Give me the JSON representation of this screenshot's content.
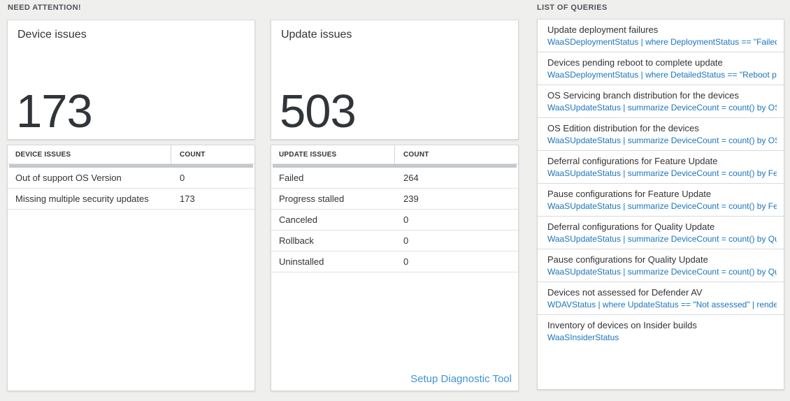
{
  "sections": {
    "need_attention_label": "NEED ATTENTION!",
    "list_of_queries_label": "LIST OF QUERIES"
  },
  "device_card": {
    "title": "Device issues",
    "count": "173"
  },
  "device_table": {
    "headers": {
      "name": "DEVICE ISSUES",
      "count": "COUNT"
    },
    "rows": [
      {
        "name": "Out of support OS Version",
        "count": "0"
      },
      {
        "name": "Missing multiple security updates",
        "count": "173"
      }
    ]
  },
  "update_card": {
    "title": "Update issues",
    "count": "503"
  },
  "update_table": {
    "headers": {
      "name": "UPDATE ISSUES",
      "count": "COUNT"
    },
    "rows": [
      {
        "name": "Failed",
        "count": "264"
      },
      {
        "name": "Progress stalled",
        "count": "239"
      },
      {
        "name": "Canceled",
        "count": "0"
      },
      {
        "name": "Rollback",
        "count": "0"
      },
      {
        "name": "Uninstalled",
        "count": "0"
      }
    ],
    "footer_link": "Setup Diagnostic Tool"
  },
  "queries": [
    {
      "title": "Update deployment failures",
      "query": "WaaSDeploymentStatus | where DeploymentStatus == \"Failed\" |..."
    },
    {
      "title": "Devices pending reboot to complete update",
      "query": "WaaSDeploymentStatus | where DetailedStatus == \"Reboot pend..."
    },
    {
      "title": "OS Servicing branch distribution for the devices",
      "query": "WaaSUpdateStatus | summarize DeviceCount = count() by OSSer..."
    },
    {
      "title": "OS Edition distribution for the devices",
      "query": "WaaSUpdateStatus | summarize DeviceCount = count() by OSEdit..."
    },
    {
      "title": "Deferral configurations for Feature Update",
      "query": "WaaSUpdateStatus | summarize DeviceCount = count() by Featur..."
    },
    {
      "title": "Pause configurations for Feature Update",
      "query": "WaaSUpdateStatus | summarize DeviceCount = count() by Featur..."
    },
    {
      "title": "Deferral configurations for Quality Update",
      "query": "WaaSUpdateStatus | summarize DeviceCount = count() by Qualit..."
    },
    {
      "title": "Pause configurations for Quality Update",
      "query": "WaaSUpdateStatus | summarize DeviceCount = count() by Qualit..."
    },
    {
      "title": "Devices not assessed for Defender AV",
      "query": "WDAVStatus | where UpdateStatus == \"Not assessed\" | render ta..."
    },
    {
      "title": "Inventory of devices on Insider builds",
      "query": "WaaSInsiderStatus"
    }
  ],
  "colors": {
    "page_background": "#efefee",
    "card_border": "#d7d7d7",
    "big_number": "#30353a",
    "query_link_blue": "#1b75bc",
    "setup_link_blue": "#4193d7",
    "scrollbar_gray": "#c4c8cb"
  }
}
